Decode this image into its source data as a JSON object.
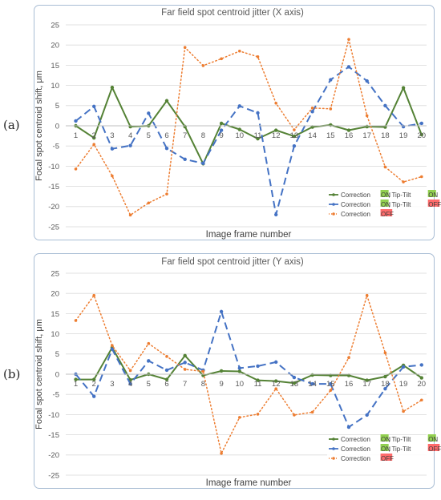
{
  "panels": [
    {
      "label": "(a)"
    },
    {
      "label": "(b)"
    }
  ],
  "chart_data": [
    {
      "type": "line",
      "title": "Far field spot centroid jitter (X axis)",
      "xlabel": "Image frame number",
      "ylabel": "Focal spot centroid shift, μm",
      "ylim": [
        -25,
        25
      ],
      "y_ticks": [
        25,
        20,
        15,
        10,
        5,
        0,
        -5,
        -10,
        -15,
        -20,
        -25
      ],
      "categories": [
        "1",
        "2",
        "3",
        "4",
        "5",
        "6",
        "7",
        "8",
        "9",
        "10",
        "11",
        "12",
        "13",
        "14",
        "15",
        "16",
        "17",
        "18",
        "19",
        "20"
      ],
      "grid": true,
      "legend_position": "bottom-right",
      "series": [
        {
          "legend_prefix": "Correction ",
          "legend_tag1": "ON",
          "legend_mid": "; Tip-Tilt ",
          "legend_tag2": "ON",
          "color": "#548235",
          "tag1_color": "#92d050",
          "tag2_color": "#92d050",
          "style": "solid",
          "values": [
            0,
            -3,
            9.5,
            -0.2,
            0,
            6.2,
            -0.2,
            -9.4,
            0.6,
            -0.9,
            -3.2,
            -1.1,
            -2.6,
            -0.3,
            0.2,
            -1.1,
            -0.2,
            -0.3,
            9.4,
            -2.2
          ]
        },
        {
          "legend_prefix": "Correction ",
          "legend_tag1": "ON",
          "legend_mid": "; Tip-Tilt ",
          "legend_tag2": "OFF",
          "color": "#4472c4",
          "tag1_color": "#92d050",
          "tag2_color": "#ff6b6b",
          "style": "dash",
          "values": [
            1.2,
            4.8,
            -5.7,
            -4.9,
            3.1,
            -5.6,
            -8.3,
            -9.3,
            -1.1,
            4.9,
            3.2,
            -22,
            -5,
            3.5,
            11.4,
            14.6,
            11.1,
            5,
            -0.2,
            0.6
          ]
        },
        {
          "legend_prefix": "Correction ",
          "legend_tag1": "OFF",
          "legend_mid": "",
          "legend_tag2": "",
          "color": "#ed7d31",
          "tag1_color": "#ff6b6b",
          "tag2_color": "",
          "style": "dot",
          "values": [
            -10.7,
            -4.6,
            -12.4,
            -22.1,
            -19.1,
            -16.9,
            19.4,
            14.9,
            16.6,
            18.5,
            17.1,
            5.6,
            -1,
            4.4,
            4.2,
            21.4,
            2.5,
            -10.2,
            -13.9,
            -12.6
          ]
        }
      ]
    },
    {
      "type": "line",
      "title": "Far field spot centroid jitter (Y axis)",
      "xlabel": "Image frame number",
      "ylabel": "Focal spot centroid shift, μm",
      "ylim": [
        -25,
        25
      ],
      "y_ticks": [
        25,
        20,
        15,
        10,
        5,
        0,
        -5,
        -10,
        -15,
        -20,
        -25
      ],
      "categories": [
        "1",
        "2",
        "3",
        "4",
        "5",
        "6",
        "7",
        "8",
        "9",
        "10",
        "11",
        "12",
        "13",
        "14",
        "15",
        "16",
        "17",
        "18",
        "19",
        "20"
      ],
      "grid": true,
      "legend_position": "bottom-right",
      "series": [
        {
          "legend_prefix": "Correction ",
          "legend_tag1": "ON",
          "legend_mid": "; Tip-Tilt ",
          "legend_tag2": "ON",
          "color": "#548235",
          "tag1_color": "#92d050",
          "tag2_color": "#92d050",
          "style": "solid",
          "values": [
            -1.3,
            -1.3,
            6.6,
            -1.4,
            0,
            -1.3,
            4.6,
            -0.3,
            0.8,
            0.7,
            -1.5,
            -1.7,
            -2.2,
            -0.2,
            -0.3,
            -0.3,
            -1.5,
            -0.6,
            2.2,
            -0.9
          ]
        },
        {
          "legend_prefix": "Correction ",
          "legend_tag1": "ON",
          "legend_mid": "; Tip-Tilt ",
          "legend_tag2": "OFF",
          "color": "#4472c4",
          "tag1_color": "#92d050",
          "tag2_color": "#ff6b6b",
          "style": "dash",
          "values": [
            0,
            -5.5,
            6.2,
            -2.4,
            3.3,
            1,
            2.9,
            1,
            15.5,
            1.5,
            2,
            3,
            -0.8,
            -2.4,
            -2.4,
            -13.1,
            -10.1,
            -3.6,
            1.8,
            2.3
          ]
        },
        {
          "legend_prefix": "Correction ",
          "legend_tag1": "OFF",
          "legend_mid": "",
          "legend_tag2": "",
          "color": "#ed7d31",
          "tag1_color": "#ff6b6b",
          "tag2_color": "",
          "style": "dot",
          "values": [
            13.3,
            19.5,
            7.1,
            0.9,
            7.6,
            4.4,
            1.2,
            0.7,
            -19.6,
            -10.7,
            -9.9,
            -3.6,
            -10.1,
            -9.4,
            -4,
            4.1,
            19.5,
            5.3,
            -9.2,
            -6.4
          ]
        }
      ]
    }
  ]
}
